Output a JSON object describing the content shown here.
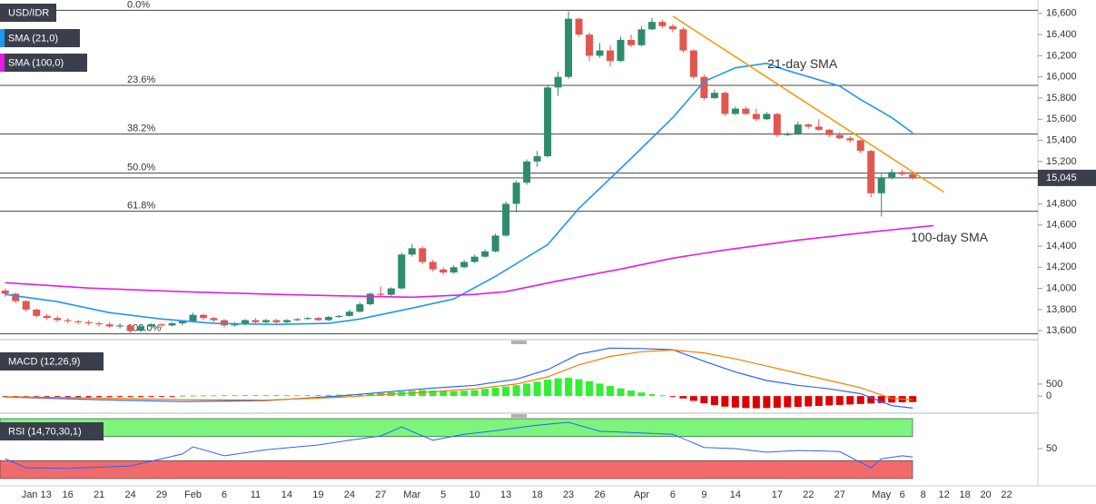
{
  "chart_data": [
    {
      "type": "candlestick",
      "title": "USD/IDR",
      "up_color": "#2e8b6b",
      "down_color": "#e0574f",
      "xlim": [
        -0.5,
        99
      ],
      "ylim": [
        13550,
        16650
      ],
      "xticks": [
        {
          "value": 3,
          "label": "Jan 13"
        },
        {
          "value": 6,
          "label": "16"
        },
        {
          "value": 9,
          "label": "21"
        },
        {
          "value": 12,
          "label": "24"
        },
        {
          "value": 15,
          "label": "29"
        },
        {
          "value": 18,
          "label": "Feb"
        },
        {
          "value": 21,
          "label": "6"
        },
        {
          "value": 24,
          "label": "11"
        },
        {
          "value": 27,
          "label": "14"
        },
        {
          "value": 30,
          "label": "19"
        },
        {
          "value": 33,
          "label": "24"
        },
        {
          "value": 36,
          "label": "27"
        },
        {
          "value": 39,
          "label": "Mar"
        },
        {
          "value": 42,
          "label": "5"
        },
        {
          "value": 45,
          "label": "10"
        },
        {
          "value": 48,
          "label": "13"
        },
        {
          "value": 51,
          "label": "18"
        },
        {
          "value": 54,
          "label": "23"
        },
        {
          "value": 57,
          "label": "26"
        },
        {
          "value": 61,
          "label": "Apr"
        },
        {
          "value": 64,
          "label": "6"
        },
        {
          "value": 67,
          "label": "9"
        },
        {
          "value": 70,
          "label": "14"
        },
        {
          "value": 74,
          "label": "17"
        },
        {
          "value": 77,
          "label": "22"
        },
        {
          "value": 80,
          "label": "27"
        },
        {
          "value": 84,
          "label": "May"
        },
        {
          "value": 86,
          "label": "6"
        },
        {
          "value": 88,
          "label": "8"
        },
        {
          "value": 90,
          "label": "12"
        },
        {
          "value": 92,
          "label": "18"
        },
        {
          "value": 94,
          "label": "20"
        },
        {
          "value": 96,
          "label": "22"
        }
      ],
      "yticks": [
        {
          "value": 13600,
          "label": "13,600"
        },
        {
          "value": 13800,
          "label": "13,800"
        },
        {
          "value": 14000,
          "label": "14,000"
        },
        {
          "value": 14200,
          "label": "14,200"
        },
        {
          "value": 14400,
          "label": "14,400"
        },
        {
          "value": 14600,
          "label": "14,600"
        },
        {
          "value": 14800,
          "label": "14,800"
        },
        {
          "value": 15000,
          "label": "15,000"
        },
        {
          "value": 15200,
          "label": "15,200"
        },
        {
          "value": 15400,
          "label": "15,400"
        },
        {
          "value": 15600,
          "label": "15,600"
        },
        {
          "value": 15800,
          "label": "15,800"
        },
        {
          "value": 16000,
          "label": "16,000"
        },
        {
          "value": 16200,
          "label": "16,200"
        },
        {
          "value": 16400,
          "label": "16,400"
        },
        {
          "value": 16600,
          "label": "16,600"
        }
      ],
      "last_price": {
        "value": 15045,
        "label": "15,045"
      },
      "fib_levels": [
        {
          "value": 16630,
          "label": "0.0%"
        },
        {
          "value": 15920,
          "label": "23.6%"
        },
        {
          "value": 15460,
          "label": "38.2%"
        },
        {
          "value": 15090,
          "label": "50.0%"
        },
        {
          "value": 14730,
          "label": "61.8%"
        },
        {
          "value": 13570,
          "label": "100.0%"
        }
      ],
      "candles": [
        [
          13980,
          14000,
          13920,
          13950
        ],
        [
          13950,
          13960,
          13860,
          13880
        ],
        [
          13880,
          13890,
          13780,
          13800
        ],
        [
          13800,
          13810,
          13720,
          13740
        ],
        [
          13740,
          13760,
          13700,
          13720
        ],
        [
          13720,
          13740,
          13680,
          13700
        ],
        [
          13700,
          13720,
          13670,
          13690
        ],
        [
          13690,
          13700,
          13660,
          13680
        ],
        [
          13680,
          13700,
          13650,
          13670
        ],
        [
          13670,
          13690,
          13640,
          13660
        ],
        [
          13660,
          13680,
          13630,
          13640
        ],
        [
          13640,
          13670,
          13620,
          13650
        ],
        [
          13650,
          13660,
          13580,
          13600
        ],
        [
          13600,
          13650,
          13590,
          13640
        ],
        [
          13640,
          13670,
          13620,
          13660
        ],
        [
          13660,
          13670,
          13630,
          13650
        ],
        [
          13650,
          13680,
          13640,
          13670
        ],
        [
          13670,
          13700,
          13650,
          13690
        ],
        [
          13690,
          13770,
          13680,
          13750
        ],
        [
          13750,
          13760,
          13700,
          13720
        ],
        [
          13720,
          13730,
          13680,
          13700
        ],
        [
          13700,
          13710,
          13630,
          13650
        ],
        [
          13650,
          13680,
          13640,
          13660
        ],
        [
          13660,
          13710,
          13650,
          13700
        ],
        [
          13700,
          13720,
          13670,
          13680
        ],
        [
          13680,
          13710,
          13670,
          13700
        ],
        [
          13700,
          13710,
          13670,
          13680
        ],
        [
          13680,
          13710,
          13670,
          13700
        ],
        [
          13700,
          13720,
          13690,
          13710
        ],
        [
          13710,
          13730,
          13700,
          13720
        ],
        [
          13720,
          13730,
          13690,
          13700
        ],
        [
          13700,
          13740,
          13690,
          13730
        ],
        [
          13730,
          13750,
          13720,
          13740
        ],
        [
          13740,
          13800,
          13730,
          13780
        ],
        [
          13780,
          13870,
          13770,
          13850
        ],
        [
          13850,
          13960,
          13840,
          13950
        ],
        [
          13950,
          14020,
          13920,
          13940
        ],
        [
          13940,
          14010,
          13930,
          14000
        ],
        [
          14000,
          14340,
          13990,
          14320
        ],
        [
          14320,
          14420,
          14300,
          14380
        ],
        [
          14380,
          14400,
          14230,
          14250
        ],
        [
          14250,
          14270,
          14160,
          14180
        ],
        [
          14180,
          14200,
          14130,
          14150
        ],
        [
          14150,
          14220,
          14140,
          14200
        ],
        [
          14200,
          14270,
          14190,
          14250
        ],
        [
          14250,
          14320,
          14240,
          14300
        ],
        [
          14300,
          14370,
          14290,
          14350
        ],
        [
          14350,
          14520,
          14340,
          14500
        ],
        [
          14500,
          14820,
          14490,
          14800
        ],
        [
          14800,
          15020,
          14720,
          15000
        ],
        [
          15000,
          15220,
          14980,
          15200
        ],
        [
          15200,
          15300,
          15150,
          15250
        ],
        [
          15250,
          15920,
          15240,
          15900
        ],
        [
          15900,
          16050,
          15820,
          16000
        ],
        [
          16000,
          16620,
          15980,
          16550
        ],
        [
          16550,
          16560,
          16380,
          16400
        ],
        [
          16400,
          16420,
          16150,
          16200
        ],
        [
          16200,
          16320,
          16180,
          16250
        ],
        [
          16250,
          16300,
          16100,
          16150
        ],
        [
          16150,
          16380,
          16140,
          16350
        ],
        [
          16350,
          16400,
          16280,
          16300
        ],
        [
          16300,
          16480,
          16290,
          16450
        ],
        [
          16450,
          16560,
          16440,
          16520
        ],
        [
          16520,
          16540,
          16460,
          16480
        ],
        [
          16480,
          16500,
          16420,
          16450
        ],
        [
          16450,
          16470,
          16230,
          16250
        ],
        [
          16250,
          16260,
          15980,
          16000
        ],
        [
          16000,
          16020,
          15780,
          15800
        ],
        [
          15800,
          15880,
          15790,
          15850
        ],
        [
          15850,
          15860,
          15630,
          15650
        ],
        [
          15650,
          15720,
          15640,
          15700
        ],
        [
          15700,
          15720,
          15640,
          15650
        ],
        [
          15650,
          15700,
          15580,
          15600
        ],
        [
          15600,
          15670,
          15590,
          15650
        ],
        [
          15650,
          15660,
          15430,
          15450
        ],
        [
          15450,
          15480,
          15440,
          15460
        ],
        [
          15460,
          15580,
          15450,
          15550
        ],
        [
          15550,
          15560,
          15510,
          15530
        ],
        [
          15530,
          15600,
          15490,
          15500
        ],
        [
          15500,
          15510,
          15430,
          15450
        ],
        [
          15450,
          15480,
          15410,
          15420
        ],
        [
          15420,
          15440,
          15380,
          15400
        ],
        [
          15400,
          15410,
          15280,
          15300
        ],
        [
          15300,
          15310,
          14860,
          14900
        ],
        [
          14900,
          15080,
          14680,
          15050
        ],
        [
          15050,
          15130,
          15030,
          15100
        ],
        [
          15100,
          15120,
          15060,
          15080
        ],
        [
          15080,
          15090,
          15030,
          15045
        ]
      ],
      "series": [
        {
          "name": "SMA (21,0)",
          "color": "#2196f3",
          "annotation": "21-day SMA",
          "x": [
            0,
            5,
            10,
            15,
            20,
            26,
            31,
            34,
            39,
            43,
            47,
            52,
            55,
            60,
            64,
            67,
            70,
            73,
            75,
            80,
            82,
            85,
            87
          ],
          "values": [
            13943,
            13875,
            13771,
            13711,
            13669,
            13660,
            13669,
            13711,
            13814,
            13900,
            14114,
            14414,
            14757,
            15229,
            15614,
            15957,
            16086,
            16129,
            16060,
            15914,
            15786,
            15614,
            15469
          ]
        },
        {
          "name": "SMA (100,0)",
          "color": "#e31de3",
          "annotation": "100-day SMA",
          "x": [
            0,
            8,
            17,
            26,
            34,
            39,
            45,
            48,
            53,
            59,
            64,
            69,
            76,
            83,
            89
          ],
          "values": [
            14054,
            14003,
            13969,
            13943,
            13926,
            13917,
            13943,
            13969,
            14071,
            14183,
            14286,
            14363,
            14457,
            14534,
            14594
          ]
        }
      ],
      "trendline": {
        "color": "#f39c12",
        "x": [
          64,
          90
        ],
        "values": [
          16575,
          14910
        ]
      }
    },
    {
      "type": "macd",
      "title": "MACD (12,26,9)",
      "ylim": [
        -600,
        2200
      ],
      "yticks": [
        0,
        500
      ],
      "pos_color": "#33ee33",
      "neg_color": "#dd0000",
      "histogram": [
        -20,
        -25,
        -30,
        -35,
        -40,
        -45,
        -50,
        -50,
        -50,
        -45,
        -45,
        -40,
        -40,
        -35,
        -30,
        -25,
        -20,
        20,
        25,
        30,
        30,
        35,
        35,
        40,
        40,
        40,
        40,
        35,
        35,
        40,
        45,
        50,
        60,
        70,
        80,
        100,
        130,
        160,
        190,
        220,
        250,
        230,
        210,
        200,
        220,
        250,
        300,
        350,
        400,
        450,
        520,
        600,
        680,
        740,
        760,
        700,
        620,
        520,
        420,
        320,
        230,
        150,
        80,
        30,
        -20,
        -100,
        -200,
        -300,
        -380,
        -440,
        -480,
        -500,
        -510,
        -500,
        -490,
        -470,
        -450,
        -430,
        -410,
        -390,
        -370,
        -350,
        -330,
        -310,
        -290,
        -270,
        -260,
        -250
      ],
      "series": [
        {
          "color": "#2962ff",
          "x": [
            0,
            9,
            17,
            25,
            32,
            36,
            40,
            45,
            49,
            52,
            55,
            58,
            61,
            64,
            67,
            70,
            73,
            76,
            79,
            82,
            85,
            87
          ],
          "values": [
            -40,
            -150,
            -230,
            -190,
            0,
            150,
            300,
            450,
            700,
            1100,
            1750,
            2000,
            1980,
            1930,
            1450,
            1000,
            650,
            450,
            300,
            100,
            -400,
            -500
          ]
        },
        {
          "color": "#f57c00",
          "x": [
            0,
            9,
            17,
            25,
            32,
            36,
            40,
            45,
            49,
            52,
            55,
            58,
            61,
            64,
            67,
            70,
            73,
            76,
            79,
            82,
            85,
            87
          ],
          "values": [
            -30,
            -80,
            -150,
            -170,
            -50,
            50,
            150,
            300,
            500,
            800,
            1300,
            1650,
            1850,
            1920,
            1800,
            1550,
            1250,
            950,
            650,
            350,
            -100,
            -150
          ]
        }
      ]
    },
    {
      "type": "rsi",
      "title": "RSI (14,70,30,1)",
      "ylim": [
        0,
        100
      ],
      "yticks": [
        50
      ],
      "bands": [
        {
          "from": 70,
          "to": 100,
          "color": "#7cf57c"
        },
        {
          "from": 0,
          "to": 30,
          "color": "#f26b6b"
        }
      ],
      "series": [
        {
          "color": "#2962ff",
          "x": [
            0,
            2,
            6,
            12,
            17,
            18,
            21,
            25,
            30,
            33,
            36,
            38,
            41,
            44,
            47,
            51,
            54,
            57,
            61,
            64,
            67,
            70,
            73,
            76,
            80,
            83,
            84,
            86,
            87
          ],
          "values": [
            33,
            18,
            17,
            21,
            41,
            53,
            38,
            48,
            56,
            64,
            71,
            86,
            64,
            74,
            80,
            89,
            94,
            79,
            76,
            74,
            52,
            50,
            44,
            47,
            45,
            18,
            33,
            38,
            36
          ]
        }
      ]
    }
  ]
}
